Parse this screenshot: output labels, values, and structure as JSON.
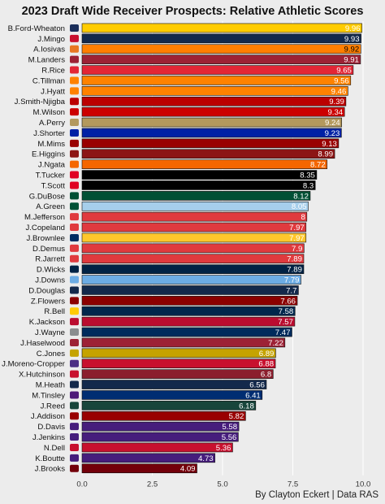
{
  "chart_data": {
    "type": "bar",
    "orientation": "horizontal",
    "title": "2023 Draft Wide Receiver Prospects: Relative Athletic Scores",
    "caption": "By Clayton Eckert | Data RAS",
    "xlabel": "",
    "ylabel": "",
    "xlim": [
      0,
      10
    ],
    "xticks": [
      0,
      2.5,
      5,
      7.5,
      10
    ],
    "xtick_labels": [
      "0.0",
      "2.5",
      "5.0",
      "7.5",
      "10.0"
    ],
    "grid": true,
    "background": "#ececec",
    "categories": [
      "B.Ford-Wheaton",
      "J.Mingo",
      "A.Iosivas",
      "M.Landers",
      "R.Rice",
      "C.Tillman",
      "J.Hyatt",
      "J.Smith-Njigba",
      "M.Wilson",
      "A.Perry",
      "J.Shorter",
      "M.Mims",
      "E.Higgins",
      "J.Ngata",
      "T.Tucker",
      "T.Scott",
      "G.DuBose",
      "A.Green",
      "M.Jefferson",
      "J.Copeland",
      "J.Brownlee",
      "D.Demus",
      "R.Jarrett",
      "D.Wicks",
      "J.Downs",
      "D.Douglas",
      "Z.Flowers",
      "R.Bell",
      "K.Jackson",
      "J.Wayne",
      "J.Haselwood",
      "C.Jones",
      "J.Moreno-Cropper",
      "X.Hutchinson",
      "M.Heath",
      "M.Tinsley",
      "J.Reed",
      "J.Addison",
      "D.Davis",
      "J.Jenkins",
      "N.Dell",
      "K.Boutte",
      "J.Brooks"
    ],
    "values": [
      9.96,
      9.93,
      9.92,
      9.91,
      9.65,
      9.56,
      9.46,
      9.39,
      9.34,
      9.24,
      9.23,
      9.13,
      8.99,
      8.72,
      8.35,
      8.3,
      8.12,
      8.05,
      8,
      7.97,
      7.97,
      7.9,
      7.89,
      7.89,
      7.79,
      7.7,
      7.66,
      7.58,
      7.57,
      7.47,
      7.22,
      6.89,
      6.88,
      6.8,
      6.56,
      6.41,
      6.18,
      5.82,
      5.58,
      5.56,
      5.36,
      4.73,
      4.09
    ],
    "value_labels": [
      "9.96",
      "9.93",
      "9.92",
      "9.91",
      "9.65",
      "9.56",
      "9.46",
      "9.39",
      "9.34",
      "9.24",
      "9.23",
      "9.13",
      "8.99",
      "8.72",
      "8.35",
      "8.3",
      "8.12",
      "8.05",
      "8",
      "7.97",
      "7.97",
      "7.9",
      "7.89",
      "7.89",
      "7.79",
      "7.7",
      "7.66",
      "7.58",
      "7.57",
      "7.47",
      "7.22",
      "6.89",
      "6.88",
      "6.8",
      "6.56",
      "6.41",
      "6.18",
      "5.82",
      "5.58",
      "5.56",
      "5.36",
      "4.73",
      "4.09"
    ],
    "bar_colors": [
      "#FFCC00",
      "#13294B",
      "#FF7F00",
      "#9D2235",
      "#E32636",
      "#FF8200",
      "#FF8200",
      "#BB0000",
      "#CC0000",
      "#B3995D",
      "#0021A5",
      "#990000",
      "#8C1515",
      "#F56600",
      "#000000",
      "#000000",
      "#005035",
      "#A6CEEB",
      "#E03A3E",
      "#E03A3E",
      "#FFC72C",
      "#E03A3E",
      "#E03A3E",
      "#002244",
      "#6CACE4",
      "#13294B",
      "#8B0000",
      "#00274C",
      "#BA0C2F",
      "#002B5C",
      "#9D2235",
      "#C5A300",
      "#C8102E",
      "#8B1E2D",
      "#13294B",
      "#002D72",
      "#18453B",
      "#990000",
      "#461D7C",
      "#461D7C",
      "#C8102E",
      "#461D7C",
      "#73000A"
    ],
    "value_label_colors": [
      "#ffffff",
      "#ffffff",
      "#000000",
      "#ffffff",
      "#ffffff",
      "#ffffff",
      "#ffffff",
      "#ffffff",
      "#ffffff",
      "#ffffff",
      "#ffffff",
      "#ffffff",
      "#ffffff",
      "#ffffff",
      "#ffffff",
      "#ffffff",
      "#ffffff",
      "#ffffff",
      "#ffffff",
      "#ffffff",
      "#ffffff",
      "#ffffff",
      "#ffffff",
      "#ffffff",
      "#ffffff",
      "#ffffff",
      "#ffffff",
      "#ffffff",
      "#ffffff",
      "#ffffff",
      "#ffffff",
      "#ffffff",
      "#ffffff",
      "#ffffff",
      "#ffffff",
      "#ffffff",
      "#ffffff",
      "#ffffff",
      "#ffffff",
      "#ffffff",
      "#ffffff",
      "#ffffff",
      "#ffffff"
    ],
    "logo_colors": [
      "#1a2e5a",
      "#c8102e",
      "#e87722",
      "#9d2235",
      "#e32636",
      "#ff8200",
      "#ff8200",
      "#bb0000",
      "#cc0000",
      "#b3995d",
      "#0021a5",
      "#990000",
      "#8c1515",
      "#f56600",
      "#e00122",
      "#e00122",
      "#005035",
      "#005035",
      "#e03a3e",
      "#e03a3e",
      "#002d62",
      "#e03a3e",
      "#e03a3e",
      "#002244",
      "#6cace4",
      "#13294b",
      "#8b0000",
      "#ffcb05",
      "#ba0c2f",
      "#8a8d8f",
      "#9d2235",
      "#c5a300",
      "#4b2e83",
      "#c8102e",
      "#13294b",
      "#4d1979",
      "#18453b",
      "#990000",
      "#461d7c",
      "#461d7c",
      "#c8102e",
      "#461d7c",
      "#73000a"
    ]
  }
}
